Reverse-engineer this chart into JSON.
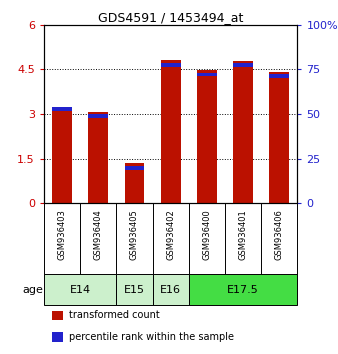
{
  "title": "GDS4591 / 1453494_at",
  "samples": [
    "GSM936403",
    "GSM936404",
    "GSM936405",
    "GSM936402",
    "GSM936400",
    "GSM936401",
    "GSM936406"
  ],
  "transformed_count": [
    3.2,
    3.08,
    1.35,
    4.83,
    4.47,
    4.78,
    4.43
  ],
  "percentile_rank_left_axis": [
    3.18,
    2.93,
    1.18,
    4.65,
    4.33,
    4.65,
    4.28
  ],
  "age_groups": [
    {
      "label": "E14",
      "indices": [
        0,
        1
      ],
      "color": "#ccf0cc"
    },
    {
      "label": "E15",
      "indices": [
        2
      ],
      "color": "#ccf0cc"
    },
    {
      "label": "E16",
      "indices": [
        3
      ],
      "color": "#ccf0cc"
    },
    {
      "label": "E17.5",
      "indices": [
        4,
        5,
        6
      ],
      "color": "#44dd44"
    }
  ],
  "ylim_left": [
    0,
    6
  ],
  "ylim_right": [
    0,
    100
  ],
  "yticks_left": [
    0,
    1.5,
    3.0,
    4.5,
    6
  ],
  "yticks_right": [
    0,
    25,
    50,
    75,
    100
  ],
  "ytick_labels_left": [
    "0",
    "1.5",
    "3",
    "4.5",
    "6"
  ],
  "ytick_labels_right": [
    "0",
    "25",
    "50",
    "75",
    "100%"
  ],
  "left_tick_color": "#cc0000",
  "right_tick_color": "#2222cc",
  "bar_color_red": "#bb1100",
  "bar_color_blue": "#2222cc",
  "background_sample": "#c8c8c8",
  "legend_red_label": "transformed count",
  "legend_blue_label": "percentile rank within the sample",
  "blue_bar_height": 0.13,
  "bar_width": 0.55
}
